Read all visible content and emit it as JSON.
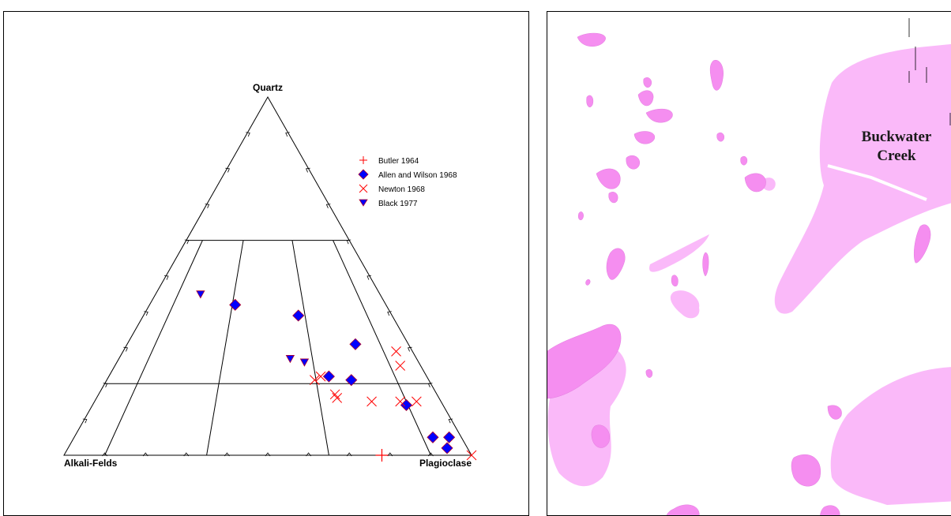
{
  "chart_data": {
    "type": "ternary-scatter",
    "vertices": {
      "top": "Quartz",
      "left": "Alkali-Felds",
      "right": "Plagioclase"
    },
    "series": [
      {
        "name": "Butler 1964",
        "marker": "plus",
        "color": "#ff0000",
        "points": [
          {
            "q": 0.0,
            "a": 0.22,
            "p": 0.78
          }
        ]
      },
      {
        "name": "Allen and Wilson 1968",
        "marker": "diamond",
        "color": "#0000ff",
        "points": [
          {
            "q": 0.42,
            "a": 0.37,
            "p": 0.21
          },
          {
            "q": 0.39,
            "a": 0.23,
            "p": 0.38
          },
          {
            "q": 0.31,
            "a": 0.13,
            "p": 0.56
          },
          {
            "q": 0.22,
            "a": 0.24,
            "p": 0.54
          },
          {
            "q": 0.21,
            "a": 0.19,
            "p": 0.6
          },
          {
            "q": 0.14,
            "a": 0.09,
            "p": 0.77
          },
          {
            "q": 0.05,
            "a": 0.07,
            "p": 0.88
          },
          {
            "q": 0.05,
            "a": 0.03,
            "p": 0.92
          },
          {
            "q": 0.02,
            "a": 0.05,
            "p": 0.93
          }
        ]
      },
      {
        "name": "Newton 1968",
        "marker": "x",
        "color": "#ff0000",
        "points": [
          {
            "q": 0.29,
            "a": 0.04,
            "p": 0.67
          },
          {
            "q": 0.25,
            "a": 0.05,
            "p": 0.7
          },
          {
            "q": 0.22,
            "a": 0.26,
            "p": 0.52
          },
          {
            "q": 0.21,
            "a": 0.28,
            "p": 0.51
          },
          {
            "q": 0.17,
            "a": 0.25,
            "p": 0.58
          },
          {
            "q": 0.16,
            "a": 0.25,
            "p": 0.59
          },
          {
            "q": 0.15,
            "a": 0.17,
            "p": 0.68
          },
          {
            "q": 0.15,
            "a": 0.1,
            "p": 0.75
          },
          {
            "q": 0.15,
            "a": 0.06,
            "p": 0.79
          },
          {
            "q": 0.0,
            "a": 0.0,
            "p": 1.0
          }
        ]
      },
      {
        "name": "Black 1977",
        "marker": "triangle-down",
        "color": "#0000ff",
        "points": [
          {
            "q": 0.45,
            "a": 0.44,
            "p": 0.11
          },
          {
            "q": 0.27,
            "a": 0.31,
            "p": 0.42
          },
          {
            "q": 0.26,
            "a": 0.28,
            "p": 0.46
          }
        ]
      }
    ],
    "field_boundaries": {
      "quartz_levels": [
        0.2,
        0.6
      ],
      "plag_ratios": [
        0.1,
        0.35,
        0.65,
        0.9
      ]
    },
    "legend": "top-right",
    "grid": false
  },
  "map": {
    "label_line1": "Buckwater",
    "label_line2": "Creek",
    "colors": {
      "dark": "#f58ef0",
      "light": "#fab9f9",
      "outline": "#e27bde"
    }
  }
}
